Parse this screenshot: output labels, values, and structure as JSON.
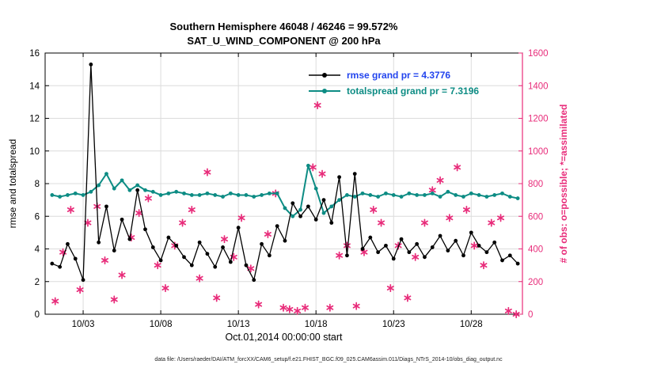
{
  "title": {
    "line1": "Southern Hemisphere 46048 / 46246 = 99.572%",
    "line2": "SAT_U_WIND_COMPONENT @ 200 hPa"
  },
  "axes": {
    "ylabel_left": "rmse and totalspread",
    "ylabel_right": "# of obs: o=possible; *=assimilated",
    "xlabel": "Oct.01,2014 00:00:00 start"
  },
  "legend": {
    "items": [
      {
        "label": "rmse grand pr = 4.3776",
        "line_color": "#000000",
        "text_color": "#2244ee"
      },
      {
        "label": "totalspread grand pr = 7.3196",
        "line_color": "#0d8c84",
        "text_color": "#0d8c84"
      }
    ]
  },
  "caption": "data file: /Users/raeder/DAI/ATM_forcXX/CAM6_setup/f.e21.FHIST_BGC.f09_025.CAM6assim.011/Diags_NTrS_2014-10/obs_diag_output.nc",
  "colors": {
    "rmse": "#000000",
    "totalspread": "#0d8c84",
    "obs": "#e82c7a",
    "grid": "#dcdcdc",
    "axis": "#000000"
  },
  "chart_data": {
    "type": "line",
    "title": "Southern Hemisphere 46048 / 46246 = 99.572% | SAT_U_WIND_COMPONENT @ 200 hPa",
    "xlabel": "Oct.01,2014 00:00:00 start",
    "ylabel_left": "rmse and totalspread",
    "ylabel_right": "# of obs: o=possible; *=assimilated",
    "xlim": [
      0.55,
      31.3
    ],
    "ylim_left": [
      0,
      16
    ],
    "ylim_right": [
      0,
      1600
    ],
    "grid": true,
    "xticks": {
      "values": [
        3,
        8,
        13,
        18,
        23,
        28
      ],
      "labels": [
        "10/03",
        "10/08",
        "10/13",
        "10/18",
        "10/23",
        "10/28"
      ]
    },
    "yticks_left": [
      0,
      2,
      4,
      6,
      8,
      10,
      12,
      14,
      16
    ],
    "yticks_right": [
      0,
      200,
      400,
      600,
      800,
      1000,
      1200,
      1400,
      1600
    ],
    "x": [
      1,
      1.5,
      2,
      2.5,
      3,
      3.5,
      4,
      4.5,
      5,
      5.5,
      6,
      6.5,
      7,
      7.5,
      8,
      8.5,
      9,
      9.5,
      10,
      10.5,
      11,
      11.5,
      12,
      12.5,
      13,
      13.5,
      14,
      14.5,
      15,
      15.5,
      16,
      16.5,
      17,
      17.5,
      18,
      18.5,
      19,
      19.5,
      20,
      20.5,
      21,
      21.5,
      22,
      22.5,
      23,
      23.5,
      24,
      24.5,
      25,
      25.5,
      26,
      26.5,
      27,
      27.5,
      28,
      28.5,
      29,
      29.5,
      30,
      30.5,
      31
    ],
    "series": [
      {
        "name": "rmse",
        "grand_pr": 4.3776,
        "axis": "left",
        "values": [
          3.1,
          2.9,
          4.3,
          3.4,
          2.1,
          15.3,
          4.4,
          6.6,
          3.9,
          5.8,
          4.6,
          7.6,
          5.2,
          4.1,
          3.3,
          4.7,
          4.2,
          3.5,
          3.0,
          4.4,
          3.7,
          2.9,
          4.1,
          3.2,
          5.3,
          3.0,
          2.1,
          4.3,
          3.6,
          5.4,
          4.5,
          6.8,
          6.0,
          6.6,
          5.8,
          7.0,
          5.6,
          8.4,
          3.6,
          8.6,
          4.0,
          4.7,
          3.8,
          4.2,
          3.4,
          4.6,
          3.8,
          4.3,
          3.5,
          4.1,
          4.8,
          3.9,
          4.5,
          3.6,
          5.0,
          4.2,
          3.8,
          4.4,
          3.3,
          3.6,
          3.1
        ]
      },
      {
        "name": "totalspread",
        "grand_pr": 7.3196,
        "axis": "left",
        "values": [
          7.3,
          7.2,
          7.3,
          7.4,
          7.3,
          7.5,
          7.9,
          8.6,
          7.7,
          8.2,
          7.6,
          7.9,
          7.6,
          7.5,
          7.3,
          7.4,
          7.5,
          7.4,
          7.3,
          7.3,
          7.4,
          7.3,
          7.2,
          7.4,
          7.3,
          7.3,
          7.2,
          7.3,
          7.4,
          7.4,
          6.5,
          6.0,
          6.4,
          9.1,
          7.7,
          6.2,
          6.6,
          7.0,
          7.3,
          7.2,
          7.4,
          7.3,
          7.2,
          7.4,
          7.3,
          7.2,
          7.4,
          7.3,
          7.3,
          7.4,
          7.2,
          7.5,
          7.3,
          7.2,
          7.4,
          7.3,
          7.2,
          7.3,
          7.4,
          7.2,
          7.1
        ]
      }
    ],
    "scatter": {
      "name": "obs_assimilated",
      "axis": "right",
      "marker": "asterisk",
      "points": [
        [
          1.2,
          80
        ],
        [
          1.7,
          380
        ],
        [
          2.2,
          640
        ],
        [
          2.8,
          150
        ],
        [
          3.3,
          560
        ],
        [
          3.9,
          660
        ],
        [
          4.4,
          330
        ],
        [
          5.0,
          90
        ],
        [
          5.5,
          240
        ],
        [
          6.1,
          470
        ],
        [
          6.6,
          620
        ],
        [
          7.2,
          710
        ],
        [
          7.8,
          300
        ],
        [
          8.3,
          160
        ],
        [
          8.9,
          420
        ],
        [
          9.4,
          560
        ],
        [
          10.0,
          640
        ],
        [
          10.5,
          220
        ],
        [
          11.0,
          870
        ],
        [
          11.6,
          100
        ],
        [
          12.1,
          460
        ],
        [
          12.7,
          350
        ],
        [
          13.2,
          590
        ],
        [
          13.8,
          280
        ],
        [
          14.3,
          60
        ],
        [
          14.9,
          490
        ],
        [
          15.4,
          740
        ],
        [
          15.9,
          40
        ],
        [
          16.3,
          30
        ],
        [
          16.8,
          20
        ],
        [
          17.3,
          40
        ],
        [
          17.8,
          900
        ],
        [
          18.1,
          1280
        ],
        [
          18.4,
          860
        ],
        [
          18.9,
          40
        ],
        [
          19.5,
          360
        ],
        [
          20.0,
          420
        ],
        [
          20.6,
          50
        ],
        [
          21.1,
          380
        ],
        [
          21.7,
          640
        ],
        [
          22.2,
          560
        ],
        [
          22.8,
          160
        ],
        [
          23.3,
          420
        ],
        [
          23.9,
          100
        ],
        [
          24.4,
          350
        ],
        [
          25.0,
          560
        ],
        [
          25.5,
          760
        ],
        [
          26.0,
          820
        ],
        [
          26.6,
          590
        ],
        [
          27.1,
          900
        ],
        [
          27.7,
          640
        ],
        [
          28.2,
          420
        ],
        [
          28.8,
          300
        ],
        [
          29.3,
          560
        ],
        [
          29.9,
          590
        ],
        [
          30.4,
          20
        ],
        [
          30.9,
          0
        ]
      ]
    }
  }
}
